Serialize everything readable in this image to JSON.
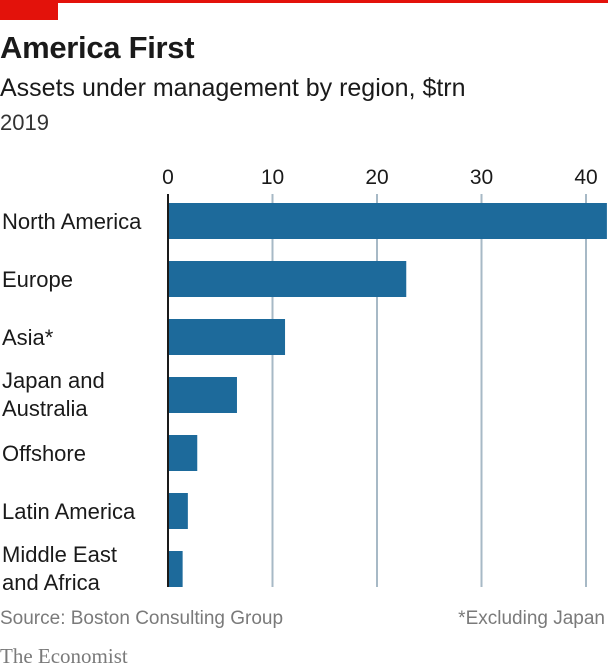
{
  "header": {
    "title": "America First",
    "subtitle": "Assets under management by region, $trn",
    "year": "2019"
  },
  "footer": {
    "source": "Source: Boston Consulting Group",
    "note": "*Excluding Japan",
    "brand": "The Economist"
  },
  "colors": {
    "bar": "#1d6a9b",
    "accent": "#e3120b",
    "grid": "#a7b9c6"
  },
  "chart_data": {
    "type": "bar",
    "orientation": "horizontal",
    "title": "America First",
    "subtitle": "Assets under management by region, $trn",
    "categories": [
      [
        "North America"
      ],
      [
        "Europe"
      ],
      [
        "Asia*"
      ],
      [
        "Japan and",
        "Australia"
      ],
      [
        "Offshore"
      ],
      [
        "Latin America"
      ],
      [
        "Middle East",
        "and Africa"
      ]
    ],
    "values": [
      42.0,
      22.8,
      11.2,
      6.6,
      2.8,
      1.9,
      1.4
    ],
    "xticks": [
      0,
      10,
      20,
      30,
      40
    ],
    "xlim": [
      0,
      42
    ],
    "grid": true
  }
}
